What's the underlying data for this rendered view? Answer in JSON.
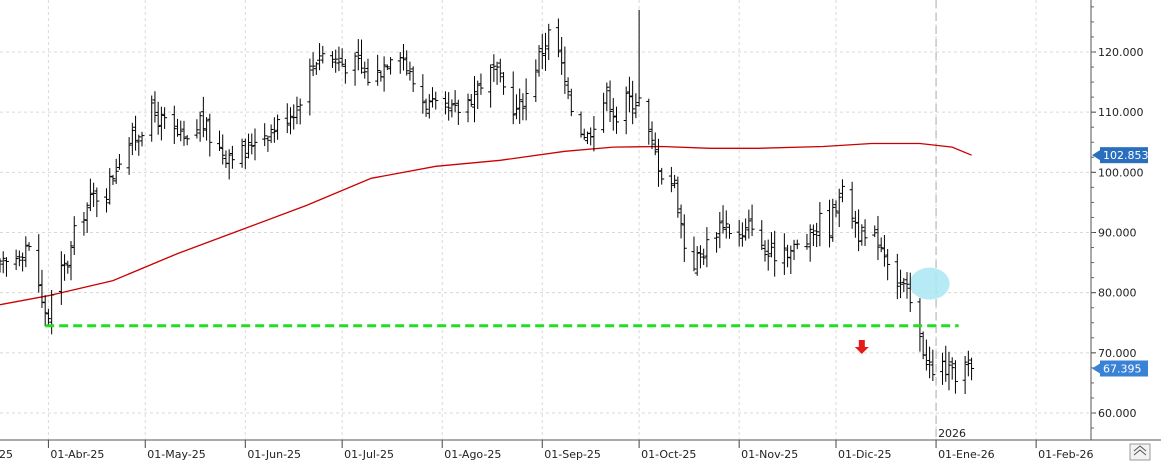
{
  "chart_data": {
    "type": "ohlc",
    "title": "",
    "xlabel": "",
    "ylabel": "",
    "ylim": [
      55000,
      127500
    ],
    "y_ticks": [
      {
        "value": 60000,
        "label": "60.000"
      },
      {
        "value": 70000,
        "label": "70.000"
      },
      {
        "value": 80000,
        "label": "80.000"
      },
      {
        "value": 90000,
        "label": "90.000"
      },
      {
        "value": 100000,
        "label": "100.000"
      },
      {
        "value": 110000,
        "label": "110.000"
      },
      {
        "value": 120000,
        "label": "120.000"
      }
    ],
    "x_labels": [
      {
        "label": "01-Abr-25",
        "day": 10
      },
      {
        "label": "01-May-25",
        "day": 40
      },
      {
        "label": "01-Jun-25",
        "day": 71
      },
      {
        "label": "01-Jul-25",
        "day": 101
      },
      {
        "label": "01-Ago-25",
        "day": 132
      },
      {
        "label": "01-Sep-25",
        "day": 163
      },
      {
        "label": "01-Oct-25",
        "day": 193
      },
      {
        "label": "01-Nov-25",
        "day": 224
      },
      {
        "label": "01-Dic-25",
        "day": 254
      },
      {
        "label": "01-Ene-26",
        "day": 285
      },
      {
        "label": "01-Feb-26",
        "day": 316
      }
    ],
    "x_edge_label": "25",
    "x_domain_days": [
      -5,
      333
    ],
    "year_marker": {
      "label": "2026",
      "day": 285
    },
    "anchors": [
      {
        "day": -5,
        "close": 84000
      },
      {
        "day": 0,
        "close": 86000
      },
      {
        "day": 3,
        "close": 88000
      },
      {
        "day": 6,
        "close": 85000
      },
      {
        "day": 8,
        "close": 78000
      },
      {
        "day": 10,
        "close": 76000
      },
      {
        "day": 12,
        "close": 82000
      },
      {
        "day": 16,
        "close": 85000
      },
      {
        "day": 19,
        "close": 92000
      },
      {
        "day": 24,
        "close": 96000
      },
      {
        "day": 28,
        "close": 97000
      },
      {
        "day": 33,
        "close": 104000
      },
      {
        "day": 37,
        "close": 106000
      },
      {
        "day": 42,
        "close": 110000
      },
      {
        "day": 46,
        "close": 108000
      },
      {
        "day": 50,
        "close": 106000
      },
      {
        "day": 54,
        "close": 104000
      },
      {
        "day": 57,
        "close": 109000
      },
      {
        "day": 61,
        "close": 105000
      },
      {
        "day": 65,
        "close": 103000
      },
      {
        "day": 68,
        "close": 104000
      },
      {
        "day": 71,
        "close": 103000
      },
      {
        "day": 74,
        "close": 106000
      },
      {
        "day": 79,
        "close": 107000
      },
      {
        "day": 83,
        "close": 109000
      },
      {
        "day": 87,
        "close": 111000
      },
      {
        "day": 90,
        "close": 116000
      },
      {
        "day": 94,
        "close": 120000
      },
      {
        "day": 98,
        "close": 119000
      },
      {
        "day": 102,
        "close": 118000
      },
      {
        "day": 106,
        "close": 118000
      },
      {
        "day": 110,
        "close": 115000
      },
      {
        "day": 114,
        "close": 118000
      },
      {
        "day": 118,
        "close": 122000
      },
      {
        "day": 122,
        "close": 116000
      },
      {
        "day": 126,
        "close": 112000
      },
      {
        "day": 131,
        "close": 110000
      },
      {
        "day": 136,
        "close": 110000
      },
      {
        "day": 140,
        "close": 112000
      },
      {
        "day": 144,
        "close": 115000
      },
      {
        "day": 148,
        "close": 117000
      },
      {
        "day": 152,
        "close": 113000
      },
      {
        "day": 155,
        "close": 110000
      },
      {
        "day": 158,
        "close": 113000
      },
      {
        "day": 161,
        "close": 118000
      },
      {
        "day": 165,
        "close": 123000
      },
      {
        "day": 168,
        "close": 120000
      },
      {
        "day": 171,
        "close": 112000
      },
      {
        "day": 174,
        "close": 108000
      },
      {
        "day": 177,
        "close": 106000
      },
      {
        "day": 180,
        "close": 110000
      },
      {
        "day": 183,
        "close": 113000
      },
      {
        "day": 186,
        "close": 109000
      },
      {
        "day": 189,
        "close": 112000
      },
      {
        "day": 193,
        "close": 112000
      },
      {
        "day": 196,
        "close": 106000
      },
      {
        "day": 200,
        "close": 100000
      },
      {
        "day": 204,
        "close": 98000
      },
      {
        "day": 207,
        "close": 88000
      },
      {
        "day": 210,
        "close": 85000
      },
      {
        "day": 213,
        "close": 87000
      },
      {
        "day": 216,
        "close": 90000
      },
      {
        "day": 219,
        "close": 92000
      },
      {
        "day": 222,
        "close": 90000
      },
      {
        "day": 225,
        "close": 89000
      },
      {
        "day": 228,
        "close": 92000
      },
      {
        "day": 231,
        "close": 87000
      },
      {
        "day": 234,
        "close": 86000
      },
      {
        "day": 237,
        "close": 88000
      },
      {
        "day": 240,
        "close": 87000
      },
      {
        "day": 243,
        "close": 88000
      },
      {
        "day": 246,
        "close": 89000
      },
      {
        "day": 249,
        "close": 92000
      },
      {
        "day": 252,
        "close": 91000
      },
      {
        "day": 255,
        "close": 97000
      },
      {
        "day": 258,
        "close": 95000
      },
      {
        "day": 261,
        "close": 90000
      },
      {
        "day": 264,
        "close": 88000
      },
      {
        "day": 267,
        "close": 89000
      },
      {
        "day": 270,
        "close": 86000
      },
      {
        "day": 273,
        "close": 82000
      },
      {
        "day": 276,
        "close": 80000
      },
      {
        "day": 278,
        "close": 76000
      },
      {
        "day": 280,
        "close": 72000
      },
      {
        "day": 283,
        "close": 68000
      },
      {
        "day": 285,
        "close": 64000
      },
      {
        "day": 287,
        "close": 68000
      },
      {
        "day": 290,
        "close": 66000
      },
      {
        "day": 293,
        "close": 68000
      },
      {
        "day": 296,
        "close": 67395
      }
    ],
    "series": [
      {
        "name": "",
        "kind": "ohlc",
        "color": "#000000"
      },
      {
        "name": "",
        "kind": "moving-average",
        "color": "#cc0000",
        "points": [
          {
            "day": -5,
            "value": 78000
          },
          {
            "day": 10,
            "value": 79500
          },
          {
            "day": 30,
            "value": 82000
          },
          {
            "day": 50,
            "value": 86500
          },
          {
            "day": 70,
            "value": 90500
          },
          {
            "day": 90,
            "value": 94500
          },
          {
            "day": 110,
            "value": 99000
          },
          {
            "day": 130,
            "value": 101000
          },
          {
            "day": 150,
            "value": 102000
          },
          {
            "day": 170,
            "value": 103500
          },
          {
            "day": 185,
            "value": 104200
          },
          {
            "day": 200,
            "value": 104300
          },
          {
            "day": 215,
            "value": 104000
          },
          {
            "day": 230,
            "value": 104000
          },
          {
            "day": 250,
            "value": 104300
          },
          {
            "day": 265,
            "value": 104800
          },
          {
            "day": 280,
            "value": 104800
          },
          {
            "day": 290,
            "value": 104200
          },
          {
            "day": 296,
            "value": 102853
          }
        ]
      }
    ],
    "support_line": {
      "value": 74500,
      "from_day": 9,
      "to_day": 292,
      "color": "#22dd22"
    },
    "last_price": {
      "label": "67.395",
      "value": 67395,
      "color": "#3a82d6"
    },
    "ma_last": {
      "label": "102.853",
      "value": 102853,
      "color": "#2a6fbd"
    },
    "highlight_ellipse": {
      "day": 283,
      "value": 81500,
      "color": "#a9e6f2"
    },
    "down_arrow": {
      "day": 262,
      "value": 69800,
      "color": "#e51b1b"
    },
    "grid": true
  }
}
